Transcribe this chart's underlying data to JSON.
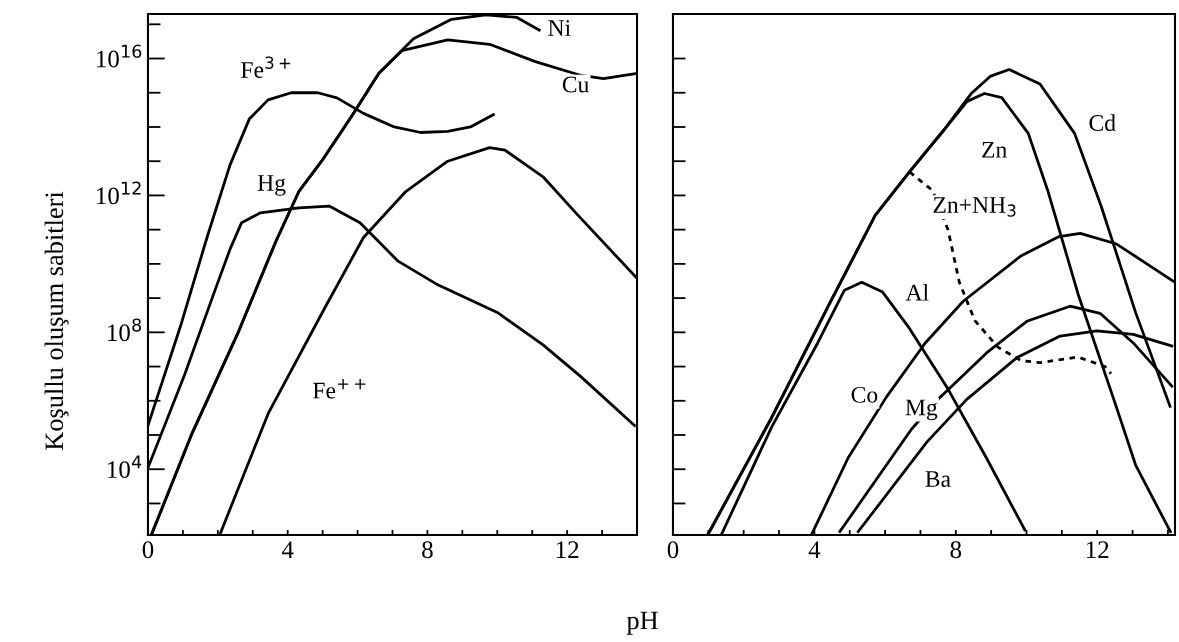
{
  "chart_data": [
    {
      "type": "line",
      "ylabel": "Koşullu oluşum sabitleri",
      "xlabel": "pH",
      "log": "y",
      "xlim": [
        0,
        14
      ],
      "ylim": [
        120,
        2e+17
      ],
      "grid": false,
      "legend": false,
      "marker": "none",
      "xticks": [
        0,
        {
          "value": 1,
          "label": null
        },
        {
          "value": 2,
          "label": null
        },
        {
          "value": 3,
          "label": null
        },
        4,
        {
          "value": 5,
          "label": null
        },
        {
          "value": 6,
          "label": null
        },
        {
          "value": 7,
          "label": null
        },
        8,
        {
          "value": 9,
          "label": null
        },
        {
          "value": 10,
          "label": null
        },
        {
          "value": 11,
          "label": null
        },
        12,
        {
          "value": 13,
          "label": null
        }
      ],
      "yticks": [
        {
          "value": 1000.0,
          "label": null
        },
        {
          "value": 10000.0,
          "label": "10$^{4}$"
        },
        {
          "value": 100000.0,
          "label": null
        },
        {
          "value": 1000000.0,
          "label": null
        },
        {
          "value": 10000000.0,
          "label": null
        },
        {
          "value": 100000000.0,
          "label": "10$^{8}$"
        },
        {
          "value": 1000000000.0,
          "label": null
        },
        {
          "value": 10000000000.0,
          "label": null
        },
        {
          "value": 100000000000.0,
          "label": null
        },
        {
          "value": 1000000000000.0,
          "label": "10$^{12}$"
        },
        {
          "value": 10000000000000.0,
          "label": null
        },
        {
          "value": 100000000000000.0,
          "label": null
        },
        {
          "value": 1000000000000000.0,
          "label": null
        },
        {
          "value": 1e+16,
          "label": "10$^{16}$"
        },
        {
          "value": 1e+17,
          "label": null
        }
      ],
      "series": [
        {
          "name": "Fe$^{3+}$",
          "color": "#000000",
          "x": [
            0,
            0.93,
            1.69,
            2.35,
            2.9,
            3.44,
            4.1,
            4.86,
            5.41,
            6.17,
            7.05,
            7.81,
            8.58,
            9.23,
            9.89
          ],
          "values": [
            190000.0,
            150000000.0,
            59000000000.0,
            7800000000000.0,
            170000000000000.0,
            620000000000000.0,
            1000000000000000.0,
            1000000000000000.0,
            710000000000000.0,
            250000000000000.0,
            100000000000000.0,
            69000000000000.0,
            74000000000000.0,
            100000000000000.0,
            230000000000000.0
          ]
        },
        {
          "name": "Hg",
          "color": "#000000",
          "x": [
            0,
            1.04,
            1.91,
            2.35,
            2.68,
            3.22,
            4.32,
            5.19,
            6.07,
            7.16,
            8.25,
            10.0,
            11.31,
            12.4,
            13.93
          ],
          "values": [
            11000.0,
            5500000.0,
            1600000000.0,
            27000000000.0,
            160000000000.0,
            310000000000.0,
            430000000000.0,
            490000000000.0,
            160000000000.0,
            12000000000.0,
            2600000000.0,
            380000000.0,
            43000000.0,
            5000000.0,
            190000.0
          ]
        },
        {
          "name": "Ni",
          "color": "#000000",
          "x": [
            0.11,
            1.26,
            2.57,
            3.66,
            4.32,
            4.97,
            5.85,
            6.61,
            7.6,
            8.69,
            9.67,
            10.55,
            11.2
          ],
          "values": [
            130.0,
            110000.0,
            93000000.0,
            45000000000.0,
            1300000000000.0,
            10000000000000.0,
            220000000000000.0,
            3700000000000000.0,
            3.8e+16,
            1.4e+17,
            1.9e+17,
            1.6e+17,
            6.8e+16
          ]
        },
        {
          "name": "Cu",
          "color": "#000000",
          "x": [
            0.11,
            1.26,
            2.57,
            3.66,
            4.32,
            4.97,
            5.85,
            6.61,
            7.27,
            8.58,
            9.78,
            11.09,
            12.4,
            13.04,
            14.0
          ],
          "values": [
            130.0,
            110000.0,
            93000000.0,
            45000000000.0,
            1300000000000.0,
            10000000000000.0,
            220000000000000.0,
            3700000000000000.0,
            1.7e+16,
            3.5e+16,
            2.6e+16,
            8100000000000000.0,
            3200000000000000.0,
            2600000000000000.0,
            3700000000000000.0
          ]
        },
        {
          "name": "Fe$^{++}$",
          "color": "#000000",
          "x": [
            2.08,
            3.44,
            5.08,
            6.17,
            7.38,
            8.58,
            9.78,
            10.22,
            11.31,
            12.3,
            14.0
          ],
          "values": [
            140.0,
            420000.0,
            560000000.0,
            59000000000.0,
            1300000000000.0,
            10000000000000.0,
            25000000000000.0,
            21000000000000.0,
            3500000000000.0,
            270000000000.0,
            3800000000.0
          ]
        }
      ]
    },
    {
      "type": "line",
      "log": "y",
      "xlim": [
        0,
        14.2
      ],
      "ylim": [
        120,
        2e+17
      ],
      "grid": false,
      "legend": false,
      "marker": "none",
      "tick_labels": "x",
      "xticks": [
        0,
        {
          "value": 1,
          "label": null
        },
        {
          "value": 2,
          "label": null
        },
        {
          "value": 3,
          "label": null
        },
        4,
        {
          "value": 5,
          "label": null
        },
        {
          "value": 6,
          "label": null
        },
        {
          "value": 7,
          "label": null
        },
        8,
        {
          "value": 9,
          "label": null
        },
        {
          "value": 10,
          "label": null
        },
        {
          "value": 11,
          "label": null
        },
        12,
        {
          "value": 13,
          "label": null
        },
        {
          "value": 14,
          "label": null
        }
      ],
      "yticks": [
        {
          "value": 1000.0,
          "label": null
        },
        {
          "value": 10000.0,
          "label": null
        },
        {
          "value": 100000.0,
          "label": null
        },
        {
          "value": 1000000.0,
          "label": null
        },
        {
          "value": 10000000.0,
          "label": null
        },
        {
          "value": 100000000.0,
          "label": null
        },
        {
          "value": 1000000000.0,
          "label": null
        },
        {
          "value": 10000000000.0,
          "label": null
        },
        {
          "value": 100000000000.0,
          "label": null
        },
        {
          "value": 1000000000000.0,
          "label": null
        },
        {
          "value": 10000000000000.0,
          "label": null
        },
        {
          "value": 100000000000000.0,
          "label": null
        },
        {
          "value": 1000000000000000.0,
          "label": null
        },
        {
          "value": 1e+16,
          "label": null
        }
      ],
      "series": [
        {
          "name": "Zn",
          "color": "#000000",
          "x": [
            1.0,
            2.79,
            4.41,
            5.72,
            6.69,
            7.67,
            8.32,
            8.81,
            9.3,
            10.05,
            10.6,
            11.46,
            12.55,
            13.09,
            14.07
          ],
          "values": [
            130.0,
            320000.0,
            630000000.0,
            260000000000.0,
            4900000000000.0,
            83000000000000.0,
            560000000000000.0,
            950000000000000.0,
            720000000000000.0,
            65000000000000.0,
            1400000000000.0,
            1300000000.0,
            620000.0,
            13000.0,
            150.0
          ]
        },
        {
          "name": "Cd",
          "color": "#000000",
          "x": [
            1.0,
            2.79,
            4.41,
            5.72,
            6.69,
            7.67,
            8.43,
            8.97,
            9.51,
            10.38,
            11.36,
            12.11,
            13.09,
            14.06
          ],
          "values": [
            130.0,
            320000.0,
            630000000.0,
            260000000000.0,
            4900000000000.0,
            83000000000000.0,
            930000000000000.0,
            3000000000000000.0,
            4800000000000000.0,
            1800000000000000.0,
            65000000000000.0,
            490000000000.0,
            370000000.0,
            690000.0
          ]
        },
        {
          "name": "Zn+NH$_{3}$",
          "color": "#000000",
          "line_style": "dotted",
          "x": [
            6.69,
            7.34,
            7.78,
            8.1,
            8.54,
            9.19,
            9.84,
            10.38,
            11.46,
            12.22,
            12.39
          ],
          "values": [
            4900000000000.0,
            1400000000000.0,
            100000000000.0,
            2900000000.0,
            220000000.0,
            37000000.0,
            15000000.0,
            13000000.0,
            19000000.0,
            10000000.0,
            6200000.0
          ]
        },
        {
          "name": "Al",
          "color": "#000000",
          "x": [
            1.38,
            2.79,
            4.09,
            4.85,
            5.34,
            5.93,
            6.69,
            7.78,
            8.86,
            9.95
          ],
          "values": [
            130.0,
            170000.0,
            48000000.0,
            1700000000.0,
            2900000000.0,
            1500000000.0,
            130000000.0,
            2200000.0,
            22000.0,
            170.0
          ]
        },
        {
          "name": "Co",
          "color": "#000000",
          "x": [
            3.93,
            4.96,
            6.04,
            7.13,
            8.21,
            9.84,
            10.92,
            11.52,
            12.55,
            14.2
          ],
          "values": [
            130.0,
            22000.0,
            1300000.0,
            48000000.0,
            810000000.0,
            17000000000.0,
            63000000000.0,
            78000000000.0,
            38000000000.0,
            2900000000.0
          ]
        },
        {
          "name": "Mg",
          "color": "#000000",
          "x": [
            4.72,
            6.75,
            7.5,
            8.87,
            10.01,
            11.23,
            12.08,
            13.02,
            14.11
          ],
          "values": [
            150.0,
            150000.0,
            1100000.0,
            25000000.0,
            210000000.0,
            580000000.0,
            360000000.0,
            49000000.0,
            2700000.0
          ]
        },
        {
          "name": "Ba",
          "color": "#000000",
          "x": [
            5.24,
            7.18,
            8.31,
            9.72,
            10.95,
            11.99,
            13.02,
            14.11
          ],
          "values": [
            150.0,
            62000.0,
            1100000.0,
            18000000.0,
            78000000.0,
            110000000.0,
            87000000.0,
            40000000.0
          ]
        }
      ]
    }
  ]
}
